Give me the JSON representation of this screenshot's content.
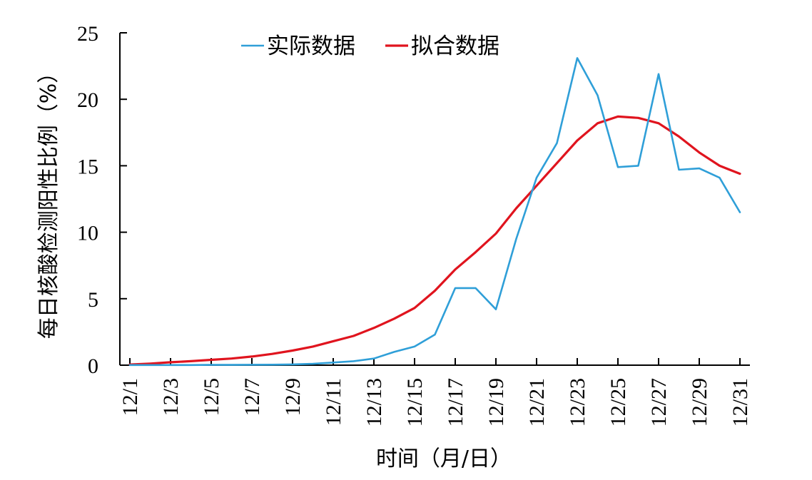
{
  "chart_data": {
    "type": "line",
    "title": "",
    "xlabel": "时间（月/日）",
    "ylabel": "每日核酸检测阳性比例（%）",
    "ylim": [
      0,
      25
    ],
    "yticks": [
      "0",
      "5",
      "10",
      "15",
      "20",
      "25"
    ],
    "x": [
      "12/1",
      "12/2",
      "12/3",
      "12/4",
      "12/5",
      "12/6",
      "12/7",
      "12/8",
      "12/9",
      "12/10",
      "12/11",
      "12/12",
      "12/13",
      "12/14",
      "12/15",
      "12/16",
      "12/17",
      "12/18",
      "12/19",
      "12/20",
      "12/21",
      "12/22",
      "12/23",
      "12/24",
      "12/25",
      "12/26",
      "12/27",
      "12/28",
      "12/29",
      "12/30",
      "12/31"
    ],
    "xtick_labels": [
      "12/1",
      "12/3",
      "12/5",
      "12/7",
      "12/9",
      "12/11",
      "12/13",
      "12/15",
      "12/17",
      "12/19",
      "12/21",
      "12/23",
      "12/25",
      "12/27",
      "12/29",
      "12/31"
    ],
    "legend_position": "top-center",
    "grid": false,
    "series": [
      {
        "name": "实际数据",
        "color": "#2f9fd8",
        "values": [
          0.01,
          0.01,
          0.01,
          0.01,
          0.02,
          0.02,
          0.03,
          0.04,
          0.06,
          0.1,
          0.2,
          0.3,
          0.5,
          1.0,
          1.4,
          2.3,
          5.8,
          5.8,
          4.2,
          9.5,
          14.1,
          16.7,
          23.1,
          20.3,
          14.9,
          15.0,
          21.9,
          14.7,
          14.8,
          14.1,
          11.5
        ]
      },
      {
        "name": "拟合数据",
        "color": "#e0141e",
        "values": [
          0.05,
          0.12,
          0.22,
          0.3,
          0.4,
          0.5,
          0.65,
          0.85,
          1.1,
          1.4,
          1.8,
          2.2,
          2.8,
          3.5,
          4.3,
          5.6,
          7.2,
          8.5,
          9.9,
          11.8,
          13.5,
          15.2,
          16.9,
          18.2,
          18.7,
          18.6,
          18.2,
          17.2,
          16.0,
          15.0,
          14.4
        ]
      }
    ]
  }
}
